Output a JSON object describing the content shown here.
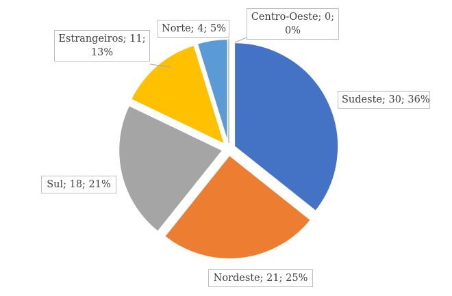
{
  "chart_data": {
    "type": "pie",
    "title": "",
    "slices": [
      {
        "category": "Sudeste",
        "value": 30,
        "percent": "36%",
        "color": "#4472C4"
      },
      {
        "category": "Nordeste",
        "value": 21,
        "percent": "25%",
        "color": "#ED7D31"
      },
      {
        "category": "Sul",
        "value": 18,
        "percent": "21%",
        "color": "#A5A5A5"
      },
      {
        "category": "Estrangeiros",
        "value": 11,
        "percent": "13%",
        "color": "#FFC000"
      },
      {
        "category": "Norte",
        "value": 4,
        "percent": "5%",
        "color": "#5B9BD5"
      },
      {
        "category": "Centro-Oeste",
        "value": 0,
        "percent": "0%",
        "color": "#70AD47"
      }
    ],
    "labels": {
      "sudeste": "Sudeste; 30; 36%",
      "nordeste": "Nordeste; 21; 25%",
      "sul": "Sul; 18; 21%",
      "estrangeiros_line1": "Estrangeiros; 11;",
      "estrangeiros_line2": "13%",
      "norte": "Norte; 4; 5%",
      "centro_line1": "Centro-Oeste; 0;",
      "centro_line2": "0%"
    }
  }
}
